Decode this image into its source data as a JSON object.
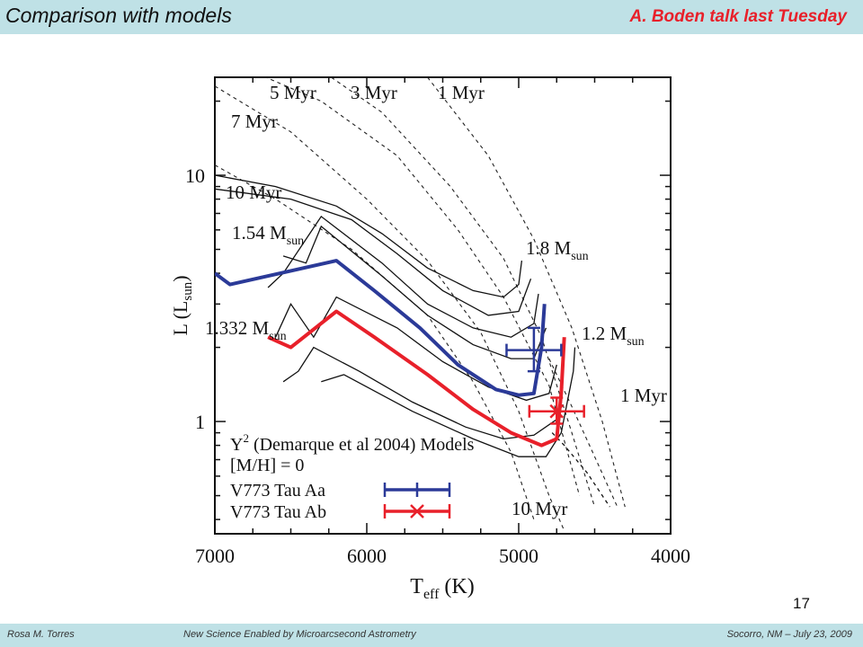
{
  "header": {
    "title": "Comparison with models",
    "note": "A. Boden talk last Tuesday",
    "note_color": "#e8202a",
    "band_color": "#bfe1e6"
  },
  "page_number": "17",
  "footer": {
    "author": "Rosa M. Torres",
    "event": "New Science Enabled by Microarcsecond Astrometry",
    "place_date": "Socorro, NM – July 23, 2009"
  },
  "chart_data": {
    "type": "line",
    "x_reversed": true,
    "y_scale": "log",
    "xlim": [
      7000,
      4000
    ],
    "ylim": [
      0.35,
      25
    ],
    "x_ticks": [
      "7000",
      "6000",
      "5000",
      "4000"
    ],
    "y_ticks": [
      "10",
      "1"
    ],
    "xlabel_main": "T",
    "xlabel_sub": "eff",
    "xlabel_tail": " (K)",
    "ylabel_main": "L (L",
    "ylabel_sub": "sun",
    "ylabel_tail": ")",
    "grid": false,
    "isochrones": [
      {
        "label": "5 Myr",
        "points": [
          [
            6850,
            28
          ],
          [
            6300,
            20
          ],
          [
            5800,
            12
          ],
          [
            5400,
            6
          ],
          [
            5100,
            3.2
          ],
          [
            4800,
            1.4
          ],
          [
            4600,
            0.5
          ]
        ]
      },
      {
        "label": "3 Myr",
        "points": [
          [
            6350,
            28
          ],
          [
            5900,
            18
          ],
          [
            5450,
            9
          ],
          [
            5100,
            4.6
          ],
          [
            4850,
            2.2
          ],
          [
            4650,
            0.9
          ],
          [
            4500,
            0.45
          ]
        ]
      },
      {
        "label": "1 Myr",
        "points": [
          [
            5600,
            25
          ],
          [
            5200,
            12
          ],
          [
            4900,
            5.5
          ],
          [
            4650,
            2.4
          ],
          [
            4450,
            1.0
          ],
          [
            4300,
            0.45
          ]
        ]
      },
      {
        "label": "7 Myr",
        "points": [
          [
            7000,
            23
          ],
          [
            6500,
            15
          ],
          [
            6000,
            8
          ],
          [
            5600,
            4.5
          ],
          [
            5250,
            2.3
          ],
          [
            5000,
            1.1
          ],
          [
            4800,
            0.5
          ],
          [
            4700,
            0.36
          ]
        ]
      },
      {
        "label": "10 Myr",
        "points": [
          [
            7000,
            11
          ],
          [
            6600,
            8
          ],
          [
            6100,
            5
          ],
          [
            5600,
            2.7
          ],
          [
            5300,
            1.45
          ],
          [
            5050,
            0.75
          ],
          [
            4900,
            0.4
          ]
        ]
      },
      {
        "label": "1 Myr",
        "points": [
          [
            4800,
            1.8
          ],
          [
            4650,
            1.15
          ],
          [
            4500,
            0.72
          ],
          [
            4350,
            0.45
          ]
        ]
      }
    ],
    "tracks": [
      {
        "label": "1.8 M",
        "label_sub": "sun",
        "points": [
          [
            7000,
            10
          ],
          [
            6600,
            9
          ],
          [
            6200,
            7.5
          ],
          [
            5900,
            5.8
          ],
          [
            5600,
            4.2
          ],
          [
            5300,
            3.4
          ],
          [
            5100,
            3.2
          ],
          [
            5000,
            3.6
          ],
          [
            4980,
            4.5
          ]
        ]
      },
      {
        "label": "",
        "points": [
          [
            7000,
            8.8
          ],
          [
            6500,
            8.0
          ],
          [
            6100,
            6.6
          ],
          [
            5800,
            4.8
          ],
          [
            5500,
            3.4
          ],
          [
            5200,
            2.7
          ],
          [
            5000,
            2.8
          ],
          [
            4920,
            3.8
          ]
        ]
      },
      {
        "label": "",
        "points": [
          [
            6650,
            3.5
          ],
          [
            6550,
            4.0
          ],
          [
            6300,
            6.8
          ],
          [
            5900,
            4.4
          ],
          [
            5600,
            3.0
          ],
          [
            5300,
            2.4
          ],
          [
            5050,
            2.2
          ],
          [
            4900,
            2.5
          ],
          [
            4870,
            3.3
          ]
        ]
      },
      {
        "label": "",
        "points": [
          [
            6550,
            4.7
          ],
          [
            6400,
            4.4
          ],
          [
            6300,
            6.2
          ],
          [
            5900,
            3.9
          ],
          [
            5600,
            2.7
          ],
          [
            5300,
            2.05
          ],
          [
            5050,
            1.8
          ],
          [
            4900,
            1.8
          ],
          [
            4820,
            2.4
          ]
        ]
      },
      {
        "label": "",
        "points": [
          [
            6600,
            2.2
          ],
          [
            6500,
            3.0
          ],
          [
            6350,
            2.2
          ],
          [
            6200,
            3.2
          ],
          [
            5800,
            2.4
          ],
          [
            5500,
            1.75
          ],
          [
            5200,
            1.38
          ],
          [
            4950,
            1.22
          ],
          [
            4800,
            1.3
          ],
          [
            4750,
            1.7
          ]
        ]
      },
      {
        "label": "",
        "points": [
          [
            6550,
            1.45
          ],
          [
            6450,
            1.6
          ],
          [
            6350,
            2.0
          ],
          [
            6050,
            1.6
          ],
          [
            5700,
            1.2
          ],
          [
            5350,
            0.95
          ],
          [
            5100,
            0.85
          ],
          [
            4900,
            0.88
          ],
          [
            4720,
            1.05
          ]
        ]
      },
      {
        "label": "1.2 M",
        "label_sub": "sun",
        "points": [
          [
            6300,
            1.45
          ],
          [
            6150,
            1.55
          ],
          [
            5700,
            1.1
          ],
          [
            5300,
            0.85
          ],
          [
            5000,
            0.72
          ],
          [
            4820,
            0.72
          ],
          [
            4720,
            0.9
          ],
          [
            4640,
            1.6
          ],
          [
            4630,
            2.0
          ]
        ]
      },
      {
        "label": "10 Myr",
        "points": [
          [
            4780,
            0.9
          ],
          [
            4700,
            0.8
          ],
          [
            4550,
            0.62
          ],
          [
            4400,
            0.45
          ]
        ]
      }
    ],
    "highlighted_tracks": [
      {
        "label": "1.54 M",
        "label_sub": "sun",
        "color": "#2b3a98",
        "points": [
          [
            7000,
            4.0
          ],
          [
            6900,
            3.6
          ],
          [
            6200,
            4.5
          ],
          [
            5950,
            3.4
          ],
          [
            5650,
            2.4
          ],
          [
            5400,
            1.7
          ],
          [
            5150,
            1.35
          ],
          [
            5000,
            1.28
          ],
          [
            4900,
            1.3
          ],
          [
            4850,
            2.0
          ],
          [
            4830,
            3.0
          ]
        ]
      },
      {
        "label": "1.332 M",
        "label_sub": "sun",
        "color": "#e8202a",
        "points": [
          [
            6650,
            2.2
          ],
          [
            6500,
            2.0
          ],
          [
            6200,
            2.8
          ],
          [
            5950,
            2.2
          ],
          [
            5600,
            1.55
          ],
          [
            5300,
            1.12
          ],
          [
            5050,
            0.9
          ],
          [
            4850,
            0.8
          ],
          [
            4750,
            0.85
          ],
          [
            4720,
            1.3
          ],
          [
            4700,
            2.2
          ]
        ]
      }
    ],
    "model_text_line1": "Y",
    "model_text_sup": "2",
    "model_text_line1_tail": " (Demarque et al 2004) Models",
    "model_text_line2": "[M/H] = 0",
    "stars": [
      {
        "name": "V773 Tau Aa",
        "color": "#2b3a98",
        "marker": "plus",
        "teff": 4900,
        "teff_err": 180,
        "lum": 1.95,
        "lum_err_low": 0.35,
        "lum_err_high": 0.45
      },
      {
        "name": "V773 Tau Ab",
        "color": "#e8202a",
        "marker": "x",
        "teff": 4750,
        "teff_err": 180,
        "lum": 1.1,
        "lum_err_low": 0.12,
        "lum_err_high": 0.15
      }
    ]
  }
}
